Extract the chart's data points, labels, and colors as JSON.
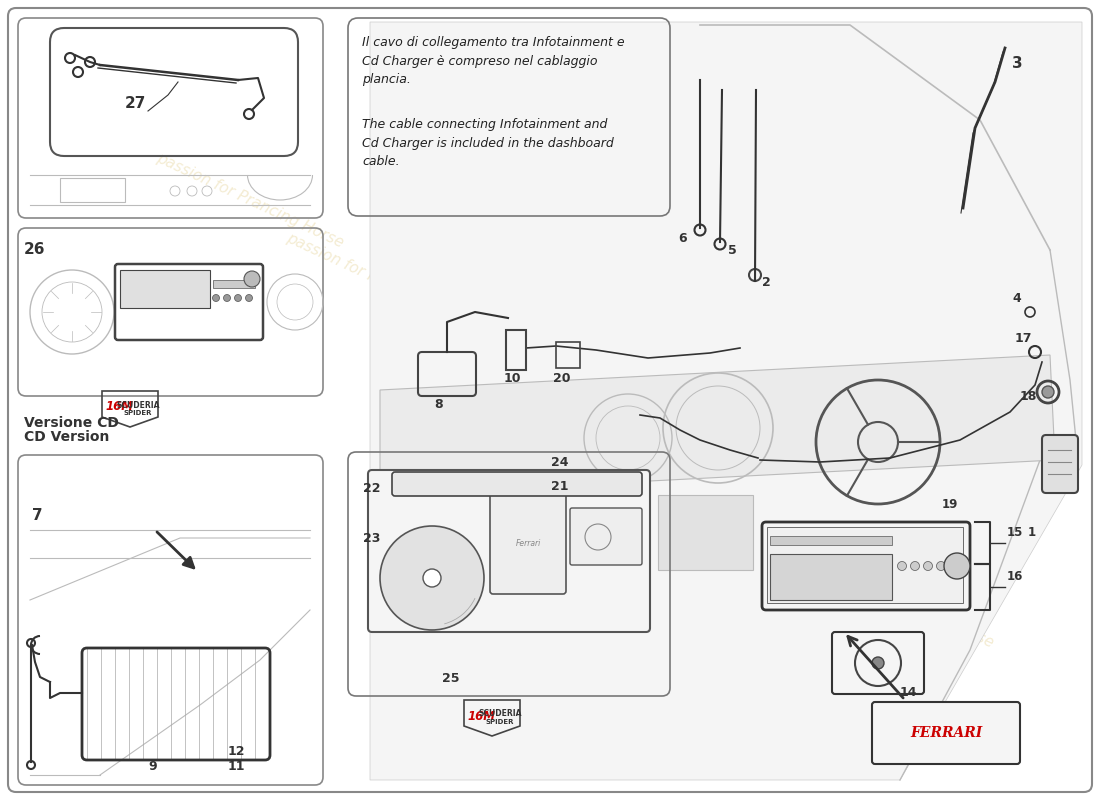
{
  "bg_color": "#ffffff",
  "line_color": "#333333",
  "light_line_color": "#bbbbbb",
  "note_text_it": "Il cavo di collegamento tra Infotainment e\nCd Charger è compreso nel cablaggio\nplancia.",
  "note_text_en": "The cable connecting Infotainment and\nCd Charger is included in the dashboard\ncable.",
  "watermark_color": "#c8a020",
  "version_text1": "Versione CD",
  "version_text2": "CD Version",
  "ferrari_text": "FERRARI"
}
